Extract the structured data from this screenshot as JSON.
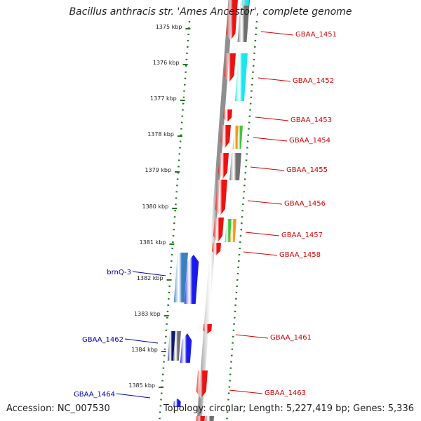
{
  "title": "Bacillus anthracis str. 'Ames Ancestor', complete genome",
  "footer": {
    "accession": "Accession: NC_007530",
    "summary": "Topology: circular; Length: 5,227,419 bp; Genes: 5,336"
  },
  "colors": {
    "backbone": "#8f8f8f",
    "ruler": "#1f7a1f",
    "forward_label": "#d40000",
    "reverse_label": "#0000b4",
    "forward_gene": "#ee1111",
    "reverse_gene": "#1a1aee",
    "cyan": "#19e6ef",
    "gray": "#6f6f6f",
    "orange": "#f09a1a",
    "green": "#3fc43f",
    "steelblue": "#3b7fc0",
    "navy": "#0f1b6e"
  },
  "kbp_labels": [
    "1375 kbp",
    "1376 kbp",
    "1377 kbp",
    "1378 kbp",
    "1379 kbp",
    "1380 kbp",
    "1381 kbp",
    "1382 kbp",
    "1383 kbp",
    "1384 kbp",
    "1385 kbp"
  ],
  "gene_labels": {
    "forward": [
      "GBAA_1451",
      "GBAA_1452",
      "GBAA_1453",
      "GBAA_1454",
      "GBAA_1455",
      "GBAA_1456",
      "GBAA_1457",
      "GBAA_1458",
      "GBAA_1461",
      "GBAA_1463"
    ],
    "reverse": [
      "brnQ-3",
      "GBAA_1462",
      "GBAA_1464"
    ]
  }
}
